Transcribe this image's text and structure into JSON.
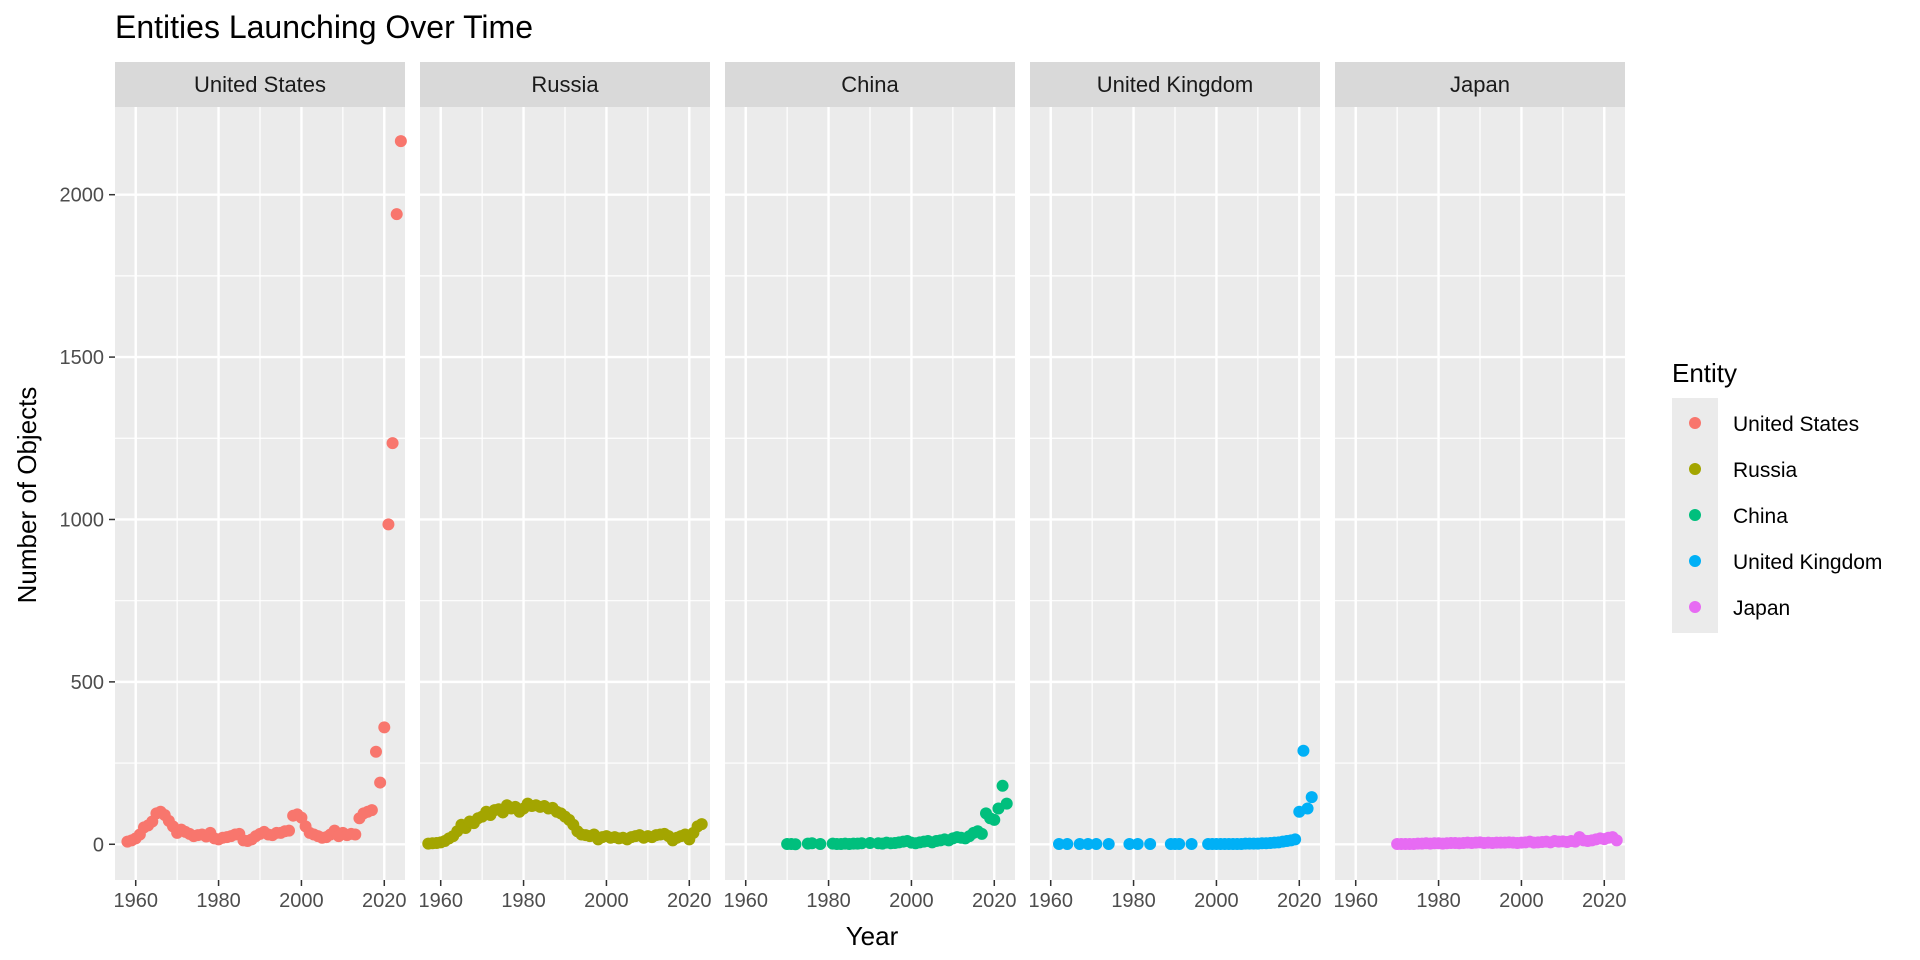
{
  "chart_data": {
    "type": "scatter",
    "title": "Entities Launching Over Time",
    "xlabel": "Year",
    "ylabel": "Number of Objects",
    "xlim": [
      1955,
      2025
    ],
    "ylim": [
      -110,
      2270
    ],
    "x_ticks": [
      1960,
      1980,
      2000,
      2020
    ],
    "y_ticks": [
      0,
      500,
      1000,
      1500,
      2000
    ],
    "grid": true,
    "legend": {
      "title": "Entity",
      "position": "right"
    },
    "series": [
      {
        "name": "United States",
        "color": "#F8766D",
        "points": [
          [
            1958,
            8
          ],
          [
            1959,
            12
          ],
          [
            1960,
            18
          ],
          [
            1961,
            30
          ],
          [
            1962,
            52
          ],
          [
            1963,
            58
          ],
          [
            1964,
            70
          ],
          [
            1965,
            95
          ],
          [
            1966,
            100
          ],
          [
            1967,
            90
          ],
          [
            1968,
            72
          ],
          [
            1969,
            55
          ],
          [
            1970,
            35
          ],
          [
            1971,
            45
          ],
          [
            1972,
            38
          ],
          [
            1973,
            32
          ],
          [
            1974,
            25
          ],
          [
            1975,
            28
          ],
          [
            1976,
            30
          ],
          [
            1977,
            24
          ],
          [
            1978,
            35
          ],
          [
            1979,
            18
          ],
          [
            1980,
            15
          ],
          [
            1981,
            20
          ],
          [
            1982,
            22
          ],
          [
            1983,
            25
          ],
          [
            1984,
            30
          ],
          [
            1985,
            32
          ],
          [
            1986,
            12
          ],
          [
            1987,
            10
          ],
          [
            1988,
            15
          ],
          [
            1989,
            25
          ],
          [
            1990,
            32
          ],
          [
            1991,
            38
          ],
          [
            1992,
            30
          ],
          [
            1993,
            28
          ],
          [
            1994,
            35
          ],
          [
            1995,
            35
          ],
          [
            1996,
            40
          ],
          [
            1997,
            42
          ],
          [
            1998,
            88
          ],
          [
            1999,
            92
          ],
          [
            2000,
            82
          ],
          [
            2001,
            55
          ],
          [
            2002,
            35
          ],
          [
            2003,
            30
          ],
          [
            2004,
            25
          ],
          [
            2005,
            20
          ],
          [
            2006,
            22
          ],
          [
            2007,
            30
          ],
          [
            2008,
            42
          ],
          [
            2009,
            25
          ],
          [
            2010,
            35
          ],
          [
            2011,
            28
          ],
          [
            2012,
            32
          ],
          [
            2013,
            30
          ],
          [
            2014,
            80
          ],
          [
            2015,
            95
          ],
          [
            2016,
            100
          ],
          [
            2017,
            105
          ],
          [
            2018,
            285
          ],
          [
            2019,
            190
          ],
          [
            2020,
            360
          ],
          [
            2021,
            985
          ],
          [
            2022,
            1235
          ],
          [
            2023,
            1940
          ],
          [
            2024,
            2165
          ]
        ]
      },
      {
        "name": "Russia",
        "color": "#A3A500",
        "points": [
          [
            1957,
            2
          ],
          [
            1958,
            3
          ],
          [
            1959,
            4
          ],
          [
            1960,
            6
          ],
          [
            1961,
            10
          ],
          [
            1962,
            18
          ],
          [
            1963,
            25
          ],
          [
            1964,
            40
          ],
          [
            1965,
            60
          ],
          [
            1966,
            50
          ],
          [
            1967,
            70
          ],
          [
            1968,
            65
          ],
          [
            1969,
            80
          ],
          [
            1970,
            85
          ],
          [
            1971,
            100
          ],
          [
            1972,
            90
          ],
          [
            1973,
            105
          ],
          [
            1974,
            108
          ],
          [
            1975,
            98
          ],
          [
            1976,
            120
          ],
          [
            1977,
            110
          ],
          [
            1978,
            115
          ],
          [
            1979,
            100
          ],
          [
            1980,
            110
          ],
          [
            1981,
            125
          ],
          [
            1982,
            118
          ],
          [
            1983,
            120
          ],
          [
            1984,
            115
          ],
          [
            1985,
            118
          ],
          [
            1986,
            110
          ],
          [
            1987,
            112
          ],
          [
            1988,
            100
          ],
          [
            1989,
            95
          ],
          [
            1990,
            85
          ],
          [
            1991,
            75
          ],
          [
            1992,
            60
          ],
          [
            1993,
            40
          ],
          [
            1994,
            30
          ],
          [
            1995,
            28
          ],
          [
            1996,
            25
          ],
          [
            1997,
            30
          ],
          [
            1998,
            15
          ],
          [
            1999,
            22
          ],
          [
            2000,
            25
          ],
          [
            2001,
            20
          ],
          [
            2002,
            22
          ],
          [
            2003,
            18
          ],
          [
            2004,
            20
          ],
          [
            2005,
            15
          ],
          [
            2006,
            22
          ],
          [
            2007,
            25
          ],
          [
            2008,
            28
          ],
          [
            2009,
            20
          ],
          [
            2010,
            25
          ],
          [
            2011,
            22
          ],
          [
            2012,
            28
          ],
          [
            2013,
            30
          ],
          [
            2014,
            32
          ],
          [
            2015,
            25
          ],
          [
            2016,
            12
          ],
          [
            2017,
            20
          ],
          [
            2018,
            25
          ],
          [
            2019,
            30
          ],
          [
            2020,
            15
          ],
          [
            2021,
            35
          ],
          [
            2022,
            55
          ],
          [
            2023,
            62
          ]
        ]
      },
      {
        "name": "China",
        "color": "#00BF7D",
        "points": [
          [
            1970,
            1
          ],
          [
            1971,
            1
          ],
          [
            1972,
            0
          ],
          [
            1975,
            2
          ],
          [
            1976,
            3
          ],
          [
            1978,
            1
          ],
          [
            1981,
            2
          ],
          [
            1982,
            1
          ],
          [
            1983,
            1
          ],
          [
            1984,
            2
          ],
          [
            1985,
            1
          ],
          [
            1986,
            2
          ],
          [
            1987,
            2
          ],
          [
            1988,
            3
          ],
          [
            1990,
            4
          ],
          [
            1992,
            3
          ],
          [
            1993,
            2
          ],
          [
            1994,
            5
          ],
          [
            1995,
            3
          ],
          [
            1996,
            4
          ],
          [
            1997,
            6
          ],
          [
            1998,
            8
          ],
          [
            1999,
            10
          ],
          [
            2000,
            5
          ],
          [
            2001,
            3
          ],
          [
            2002,
            6
          ],
          [
            2003,
            8
          ],
          [
            2004,
            10
          ],
          [
            2005,
            6
          ],
          [
            2006,
            10
          ],
          [
            2007,
            12
          ],
          [
            2008,
            15
          ],
          [
            2009,
            12
          ],
          [
            2010,
            18
          ],
          [
            2011,
            22
          ],
          [
            2012,
            20
          ],
          [
            2013,
            18
          ],
          [
            2014,
            25
          ],
          [
            2015,
            35
          ],
          [
            2016,
            40
          ],
          [
            2017,
            32
          ],
          [
            2018,
            95
          ],
          [
            2019,
            80
          ],
          [
            2020,
            75
          ],
          [
            2021,
            110
          ],
          [
            2022,
            180
          ],
          [
            2023,
            125
          ]
        ]
      },
      {
        "name": "United Kingdom",
        "color": "#00B0F6",
        "points": [
          [
            1962,
            1
          ],
          [
            1964,
            1
          ],
          [
            1967,
            1
          ],
          [
            1969,
            1
          ],
          [
            1971,
            1
          ],
          [
            1974,
            1
          ],
          [
            1979,
            1
          ],
          [
            1981,
            1
          ],
          [
            1984,
            1
          ],
          [
            1989,
            1
          ],
          [
            1990,
            1
          ],
          [
            1991,
            1
          ],
          [
            1994,
            1
          ],
          [
            1998,
            1
          ],
          [
            1999,
            1
          ],
          [
            2000,
            1
          ],
          [
            2001,
            1
          ],
          [
            2002,
            1
          ],
          [
            2003,
            1
          ],
          [
            2004,
            1
          ],
          [
            2005,
            1
          ],
          [
            2006,
            1
          ],
          [
            2007,
            2
          ],
          [
            2008,
            2
          ],
          [
            2009,
            2
          ],
          [
            2010,
            2
          ],
          [
            2011,
            3
          ],
          [
            2012,
            3
          ],
          [
            2013,
            4
          ],
          [
            2014,
            5
          ],
          [
            2015,
            6
          ],
          [
            2016,
            8
          ],
          [
            2017,
            10
          ],
          [
            2018,
            12
          ],
          [
            2019,
            15
          ],
          [
            2020,
            100
          ],
          [
            2021,
            288
          ],
          [
            2022,
            110
          ],
          [
            2023,
            145
          ]
        ]
      },
      {
        "name": "Japan",
        "color": "#E76BF3",
        "points": [
          [
            1970,
            1
          ],
          [
            1971,
            1
          ],
          [
            1972,
            1
          ],
          [
            1973,
            1
          ],
          [
            1974,
            1
          ],
          [
            1975,
            2
          ],
          [
            1976,
            2
          ],
          [
            1977,
            3
          ],
          [
            1978,
            2
          ],
          [
            1979,
            3
          ],
          [
            1980,
            3
          ],
          [
            1981,
            2
          ],
          [
            1982,
            3
          ],
          [
            1983,
            4
          ],
          [
            1984,
            4
          ],
          [
            1985,
            3
          ],
          [
            1986,
            4
          ],
          [
            1987,
            5
          ],
          [
            1988,
            4
          ],
          [
            1989,
            5
          ],
          [
            1990,
            6
          ],
          [
            1991,
            4
          ],
          [
            1992,
            5
          ],
          [
            1993,
            4
          ],
          [
            1994,
            5
          ],
          [
            1995,
            5
          ],
          [
            1996,
            5
          ],
          [
            1997,
            6
          ],
          [
            1998,
            5
          ],
          [
            1999,
            4
          ],
          [
            2000,
            5
          ],
          [
            2001,
            6
          ],
          [
            2002,
            8
          ],
          [
            2003,
            5
          ],
          [
            2004,
            6
          ],
          [
            2005,
            7
          ],
          [
            2006,
            8
          ],
          [
            2007,
            6
          ],
          [
            2008,
            10
          ],
          [
            2009,
            8
          ],
          [
            2010,
            9
          ],
          [
            2011,
            7
          ],
          [
            2012,
            10
          ],
          [
            2013,
            8
          ],
          [
            2014,
            22
          ],
          [
            2015,
            12
          ],
          [
            2016,
            10
          ],
          [
            2017,
            12
          ],
          [
            2018,
            15
          ],
          [
            2019,
            18
          ],
          [
            2020,
            16
          ],
          [
            2021,
            20
          ],
          [
            2022,
            22
          ],
          [
            2023,
            12
          ]
        ]
      }
    ]
  }
}
